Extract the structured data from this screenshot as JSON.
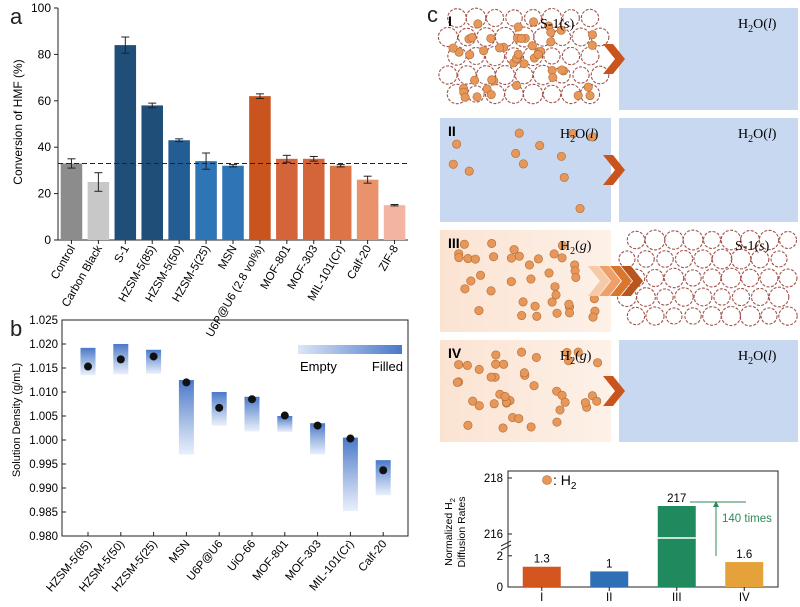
{
  "panel_labels": {
    "a": "a",
    "b": "b",
    "c": "c"
  },
  "colors": {
    "gray_dark": "#8c8c8c",
    "gray_light": "#c8c8c8",
    "blue_dark": "#1f4e79",
    "blue_mid": "#2e75b6",
    "blue_light": "#4a90d0",
    "orange_dark": "#c9541e",
    "orange_mid": "#dc6e3e",
    "orange_light": "#e8936c",
    "pink": "#f3b4a2",
    "water": "#c8d8f0",
    "gas": "#fce6d8",
    "particle": "#e8975a",
    "bar_I": "#d4561e",
    "bar_II": "#2f6fb8",
    "bar_III": "#1f8a5e",
    "bar_IV": "#e6a23a",
    "annotation": "#2e8b57"
  },
  "chart_data": [
    {
      "type": "bar",
      "title": "",
      "ylabel": "Conversion of HMF (%)",
      "xlabel": "",
      "ylim": [
        0,
        100
      ],
      "yticks": [
        0,
        20,
        40,
        60,
        80,
        100
      ],
      "reference_line": 33,
      "categories": [
        "Control",
        "Carbon Black",
        "S-1",
        "HZSM-5(85)",
        "HZSM-5(50)",
        "HZSM-5(25)",
        "MSN",
        "U6P@U6 (2.8 vol%)",
        "MOF-801",
        "MOF-303",
        "MIL-101(Cr)",
        "Calf-20",
        "ZIF-8"
      ],
      "values": [
        33,
        25,
        84,
        58,
        43,
        34,
        32,
        62,
        35,
        35,
        32,
        26,
        15
      ],
      "errors": [
        2,
        4,
        3.5,
        1,
        0.6,
        3.5,
        0.5,
        1,
        1.5,
        1,
        0.5,
        1.5,
        0.3
      ],
      "colors": [
        "#8c8c8c",
        "#c8c8c8",
        "#1f4e79",
        "#1f4e79",
        "#245d93",
        "#2e75b6",
        "#2e75b6",
        "#c9541e",
        "#d4653a",
        "#d4653a",
        "#dc7448",
        "#e8936c",
        "#f3b4a2"
      ]
    },
    {
      "type": "range",
      "ylabel": "Solution Density (g/mL)",
      "ylim": [
        0.98,
        1.025
      ],
      "yticks": [
        "0.980",
        "0.985",
        "0.990",
        "0.995",
        "1.000",
        "1.005",
        "1.010",
        "1.015",
        "1.020",
        "1.025"
      ],
      "legend": {
        "empty": "Empty",
        "filled": "Filled"
      },
      "categories": [
        "HZSM-5(85)",
        "HZSM-5(50)",
        "HZSM-5(25)",
        "MSN",
        "U6P@U6",
        "UiO-66",
        "MOF-801",
        "MOF-303",
        "MIL-101(Cr)",
        "Calf-20"
      ],
      "empty_density": [
        1.0135,
        1.0137,
        1.0138,
        0.997,
        1.003,
        1.0018,
        1.0017,
        0.997,
        0.9852,
        0.9885
      ],
      "filled_density": [
        1.0192,
        1.02,
        1.0188,
        1.0125,
        1.01,
        1.009,
        1.005,
        1.0035,
        1.0005,
        0.9958
      ],
      "points": [
        1.0153,
        1.0168,
        1.0174,
        1.012,
        1.0067,
        1.0085,
        1.0051,
        1.003,
        1.0003,
        0.9937
      ]
    },
    {
      "type": "bar",
      "ylabel_line1": "Normalized H",
      "ylabel_sub": "2",
      "ylabel_line2": "Diffusion Rates",
      "categories": [
        "I",
        "II",
        "III",
        "IV"
      ],
      "values": [
        1.3,
        1,
        217,
        1.6
      ],
      "value_labels": [
        "1.3",
        "1",
        "217",
        "1.6"
      ],
      "yticks_lower": [
        "0",
        "2"
      ],
      "yticks_upper": [
        "216",
        "218"
      ],
      "annotation": "140 times"
    }
  ],
  "diagram": {
    "legend_h2": ": H",
    "legend_h2_sub": "2",
    "rows": [
      {
        "numeral": "I",
        "left": "S-1(",
        "left_phase": "s",
        "right": "H",
        "right_sub": "2",
        "right_tail": "O(",
        "right_phase": "l"
      },
      {
        "numeral": "II",
        "left": "H",
        "left_sub": "2",
        "left_tail": "O(",
        "left_phase": "l",
        "right": "H",
        "right_sub": "2",
        "right_tail": "O(",
        "right_phase": "l"
      },
      {
        "numeral": "III",
        "left": "H",
        "left_sub": "2",
        "left_tail": "(",
        "left_phase": "g",
        "right": "S-1(",
        "right_phase": "s"
      },
      {
        "numeral": "IV",
        "left": "H",
        "left_sub": "2",
        "left_tail": "(",
        "left_phase": "g",
        "right": "H",
        "right_sub": "2",
        "right_tail": "O(",
        "right_phase": "l"
      }
    ]
  }
}
